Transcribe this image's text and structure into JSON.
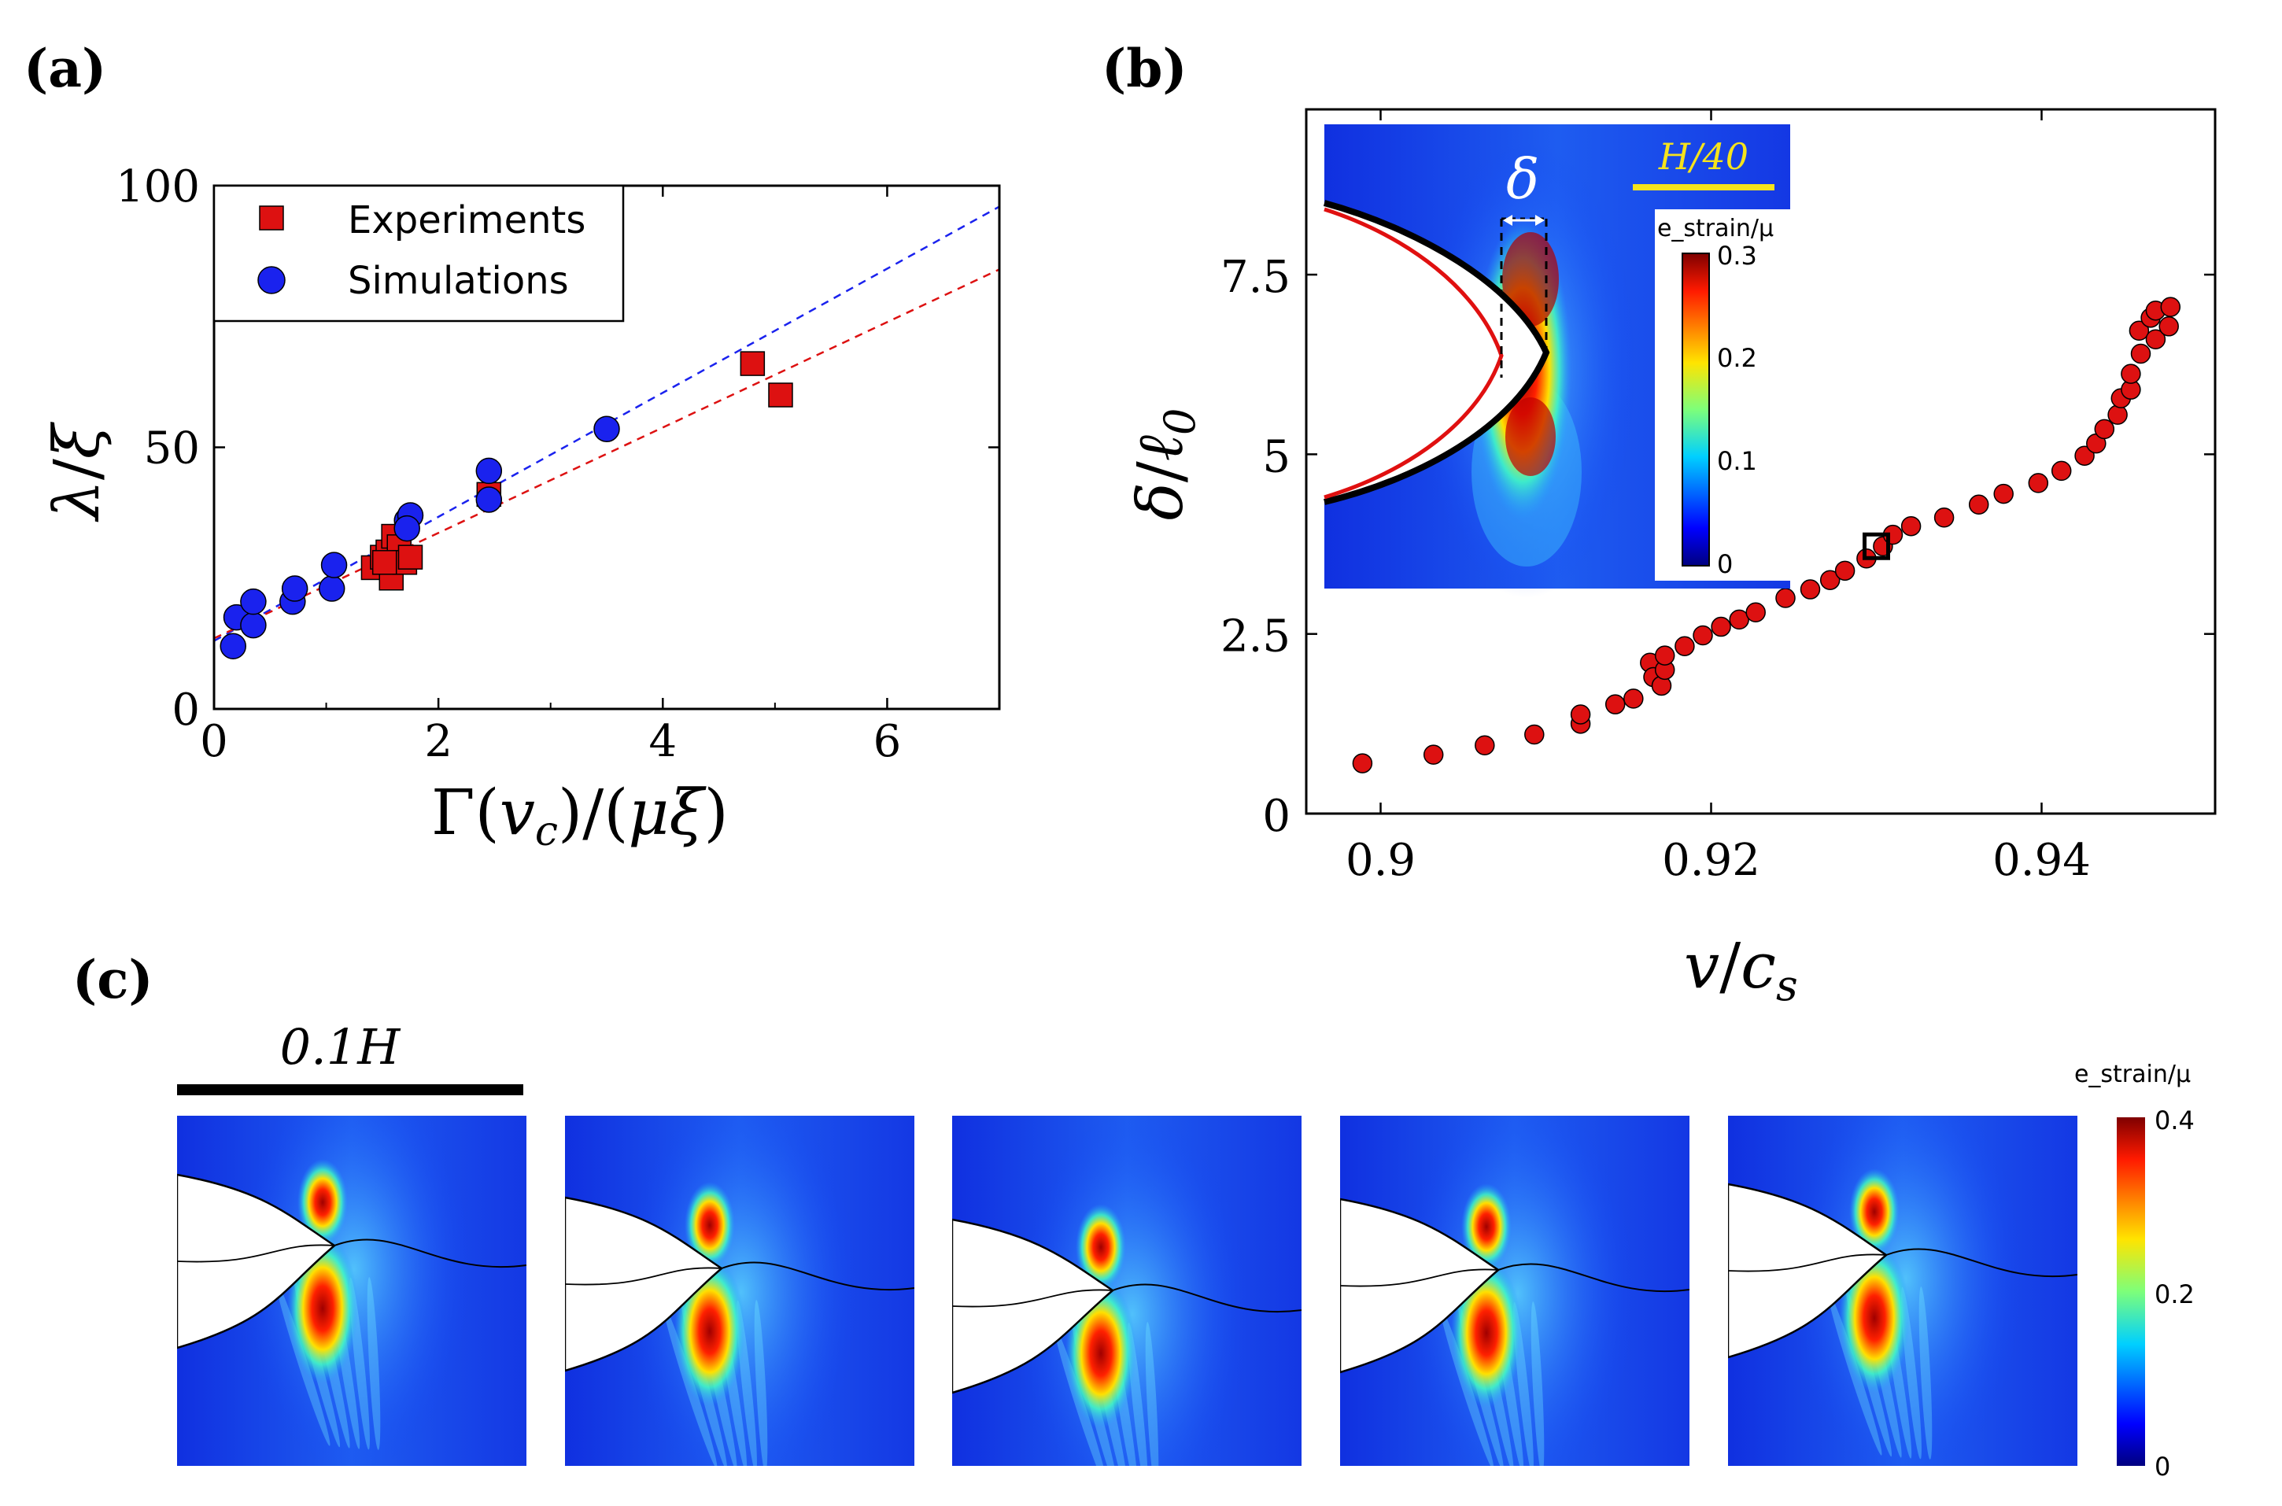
{
  "panel_labels": {
    "a": "(a)",
    "b": "(b)",
    "c": "(c)"
  },
  "chart_data": [
    {
      "id": "a",
      "type": "scatter",
      "xlabel": "Γ(v_c)/(μξ)",
      "ylabel": "λ/ξ",
      "xlim": [
        0,
        7
      ],
      "ylim": [
        0,
        100
      ],
      "xticks": [
        "0",
        "2",
        "4",
        "6"
      ],
      "yticks": [
        "0",
        "50",
        "100"
      ],
      "legend_position": "top-left",
      "series": [
        {
          "name": "Experiments",
          "marker": "square",
          "color": "#dd1111",
          "points": [
            [
              1.42,
              27
            ],
            [
              1.5,
              29
            ],
            [
              1.55,
              30
            ],
            [
              1.6,
              33
            ],
            [
              1.58,
              25
            ],
            [
              1.65,
              31
            ],
            [
              1.7,
              28
            ],
            [
              1.75,
              29
            ],
            [
              1.52,
              28
            ],
            [
              2.45,
              41
            ],
            [
              4.8,
              66
            ],
            [
              5.05,
              60
            ]
          ]
        },
        {
          "name": "Simulations",
          "marker": "circle",
          "color": "#1a22ee",
          "points": [
            [
              0.17,
              12
            ],
            [
              0.2,
              17.5
            ],
            [
              0.35,
              16
            ],
            [
              0.35,
              20.5
            ],
            [
              0.7,
              20.5
            ],
            [
              0.72,
              23
            ],
            [
              1.05,
              23
            ],
            [
              1.07,
              27.5
            ],
            [
              1.72,
              36
            ],
            [
              1.75,
              37
            ],
            [
              1.72,
              34.5
            ],
            [
              2.45,
              45.5
            ],
            [
              2.45,
              40
            ],
            [
              3.5,
              53.5
            ]
          ]
        }
      ],
      "fits": [
        {
          "color": "#1a22ee",
          "style": "dashed",
          "x": [
            0,
            7
          ],
          "y": [
            13,
            96
          ]
        },
        {
          "color": "#dd1111",
          "style": "dashed",
          "x": [
            0,
            7
          ],
          "y": [
            13.5,
            84
          ]
        }
      ]
    },
    {
      "id": "b",
      "type": "scatter",
      "xlabel": "v/c_s",
      "ylabel": "δ/ℓ_0",
      "xlim": [
        0.8955,
        0.9505
      ],
      "ylim": [
        0,
        9.8
      ],
      "xticks": [
        "0.9",
        "0.92",
        "0.94"
      ],
      "yticks": [
        "0",
        "2.5",
        "5",
        "7.5"
      ],
      "series": [
        {
          "name": "",
          "marker": "circle",
          "color": "#dd1111",
          "points": [
            [
              0.8989,
              0.7
            ],
            [
              0.9032,
              0.82
            ],
            [
              0.9063,
              0.95
            ],
            [
              0.9093,
              1.1
            ],
            [
              0.9121,
              1.25
            ],
            [
              0.9121,
              1.38
            ],
            [
              0.9142,
              1.52
            ],
            [
              0.9153,
              1.6
            ],
            [
              0.9163,
              2.1
            ],
            [
              0.9165,
              1.9
            ],
            [
              0.917,
              1.78
            ],
            [
              0.9172,
              2.0
            ],
            [
              0.9172,
              2.2
            ],
            [
              0.9184,
              2.33
            ],
            [
              0.9195,
              2.48
            ],
            [
              0.9206,
              2.6
            ],
            [
              0.9217,
              2.7
            ],
            [
              0.9227,
              2.8
            ],
            [
              0.9245,
              3.0
            ],
            [
              0.926,
              3.12
            ],
            [
              0.9272,
              3.25
            ],
            [
              0.9281,
              3.38
            ],
            [
              0.9294,
              3.55
            ],
            [
              0.9304,
              3.72
            ],
            [
              0.931,
              3.88
            ],
            [
              0.9321,
              4.0
            ],
            [
              0.9341,
              4.12
            ],
            [
              0.9362,
              4.3
            ],
            [
              0.9377,
              4.45
            ],
            [
              0.9398,
              4.6
            ],
            [
              0.9412,
              4.77
            ],
            [
              0.9426,
              4.98
            ],
            [
              0.9433,
              5.15
            ],
            [
              0.9438,
              5.35
            ],
            [
              0.9446,
              5.55
            ],
            [
              0.9448,
              5.78
            ],
            [
              0.9454,
              5.9
            ],
            [
              0.9454,
              6.12
            ],
            [
              0.946,
              6.4
            ],
            [
              0.9459,
              6.72
            ],
            [
              0.9466,
              6.9
            ],
            [
              0.9469,
              6.6
            ],
            [
              0.9469,
              7.0
            ],
            [
              0.9477,
              6.78
            ],
            [
              0.9478,
              7.05
            ]
          ]
        }
      ],
      "highlight_point": [
        0.93,
        3.72
      ]
    }
  ],
  "inset_b": {
    "delta_label": "δ",
    "scale_label": "H/40",
    "colorbar_title": "e_strain/μ",
    "colorbar_ticks": [
      "0.3",
      "0.2",
      "0.1",
      "0"
    ],
    "accent_yellow": "#f5e31c"
  },
  "panel_c": {
    "scale_label": "0.1H",
    "colorbar_title": "e_strain/μ",
    "colorbar_ticks": [
      "0.4",
      "0.2",
      "0"
    ],
    "frame_count": 5
  }
}
